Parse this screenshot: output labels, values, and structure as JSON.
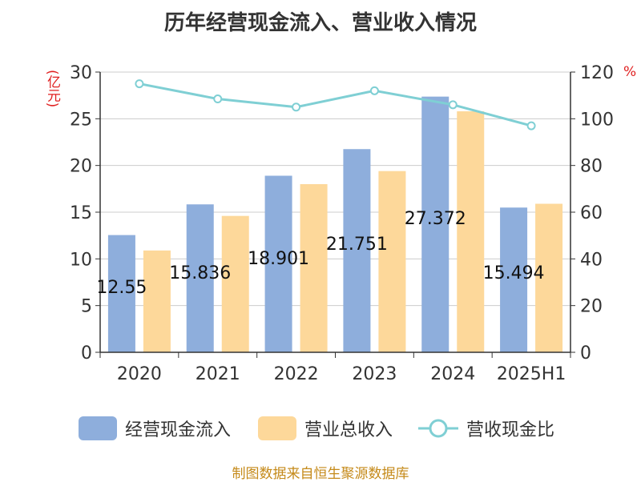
{
  "chart_data": {
    "type": "bar",
    "title": "历年经营现金流入、营业收入情况",
    "categories": [
      "2020",
      "2021",
      "2022",
      "2023",
      "2024",
      "2025H1"
    ],
    "series": [
      {
        "name": "经营现金流入",
        "type": "bar",
        "axis": "left",
        "color": "#8eaedc",
        "values": [
          12.55,
          15.836,
          18.901,
          21.751,
          27.372,
          15.494
        ],
        "labels": [
          "12.55",
          "15.836",
          "18.901",
          "21.751",
          "27.372",
          "15.494"
        ]
      },
      {
        "name": "营业总收入",
        "type": "bar",
        "axis": "left",
        "color": "#fdd89a",
        "values": [
          10.9,
          14.6,
          18.0,
          19.4,
          25.8,
          15.9
        ]
      },
      {
        "name": "营收现金比",
        "type": "line",
        "axis": "right",
        "color": "#7fcfd4",
        "values": [
          115.0,
          108.5,
          105.0,
          112.0,
          106.0,
          97.0
        ]
      }
    ],
    "y_left": {
      "unit": "(亿元)",
      "min": 0,
      "max": 30,
      "ticks": [
        0,
        5,
        10,
        15,
        20,
        25,
        30
      ]
    },
    "y_right": {
      "unit": "%",
      "min": 0,
      "max": 120,
      "ticks": [
        0,
        20,
        40,
        60,
        80,
        100,
        120
      ]
    },
    "grid": true,
    "legend_position": "bottom"
  },
  "source": "制图数据来自恒生聚源数据库"
}
